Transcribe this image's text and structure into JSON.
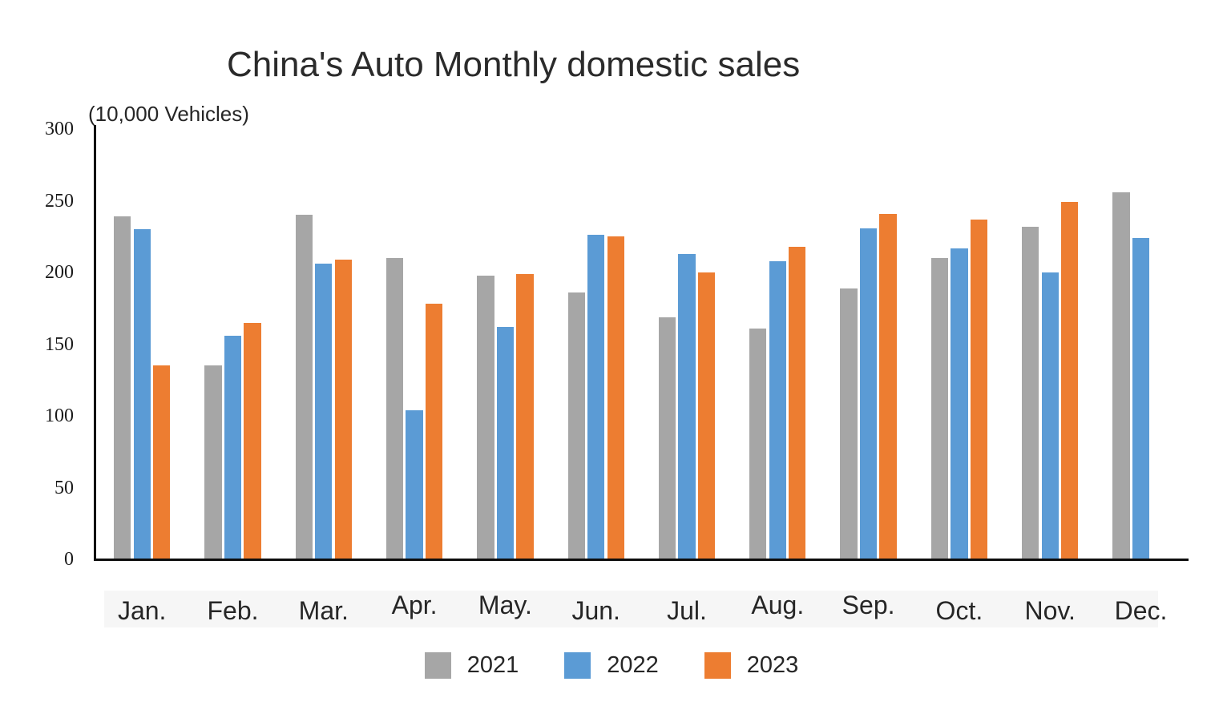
{
  "chart_data": {
    "type": "bar",
    "title": "China's Auto Monthly domestic sales",
    "unit_label": "(10,000 Vehicles)",
    "categories": [
      "Jan.",
      "Feb.",
      "Mar.",
      "Apr.",
      "May.",
      "Jun.",
      "Jul.",
      "Aug.",
      "Sep.",
      "Oct.",
      "Nov.",
      "Dec."
    ],
    "series": [
      {
        "name": "2021",
        "color": "#a6a6a6",
        "values": [
          239,
          135,
          240,
          210,
          198,
          186,
          169,
          161,
          189,
          210,
          232,
          256
        ]
      },
      {
        "name": "2022",
        "color": "#5b9bd5",
        "values": [
          230,
          156,
          206,
          104,
          162,
          226,
          213,
          208,
          231,
          217,
          200,
          224
        ]
      },
      {
        "name": "2023",
        "color": "#ed7d31",
        "values": [
          135,
          165,
          209,
          178,
          199,
          225,
          200,
          218,
          241,
          237,
          249,
          null
        ]
      }
    ],
    "ylim": [
      0,
      300
    ],
    "y_ticks": [
      0,
      50,
      100,
      150,
      200,
      250,
      300
    ],
    "grid": false,
    "legend_position": "bottom",
    "axis_color": "#0d0d0d",
    "text_color": "#262626"
  }
}
